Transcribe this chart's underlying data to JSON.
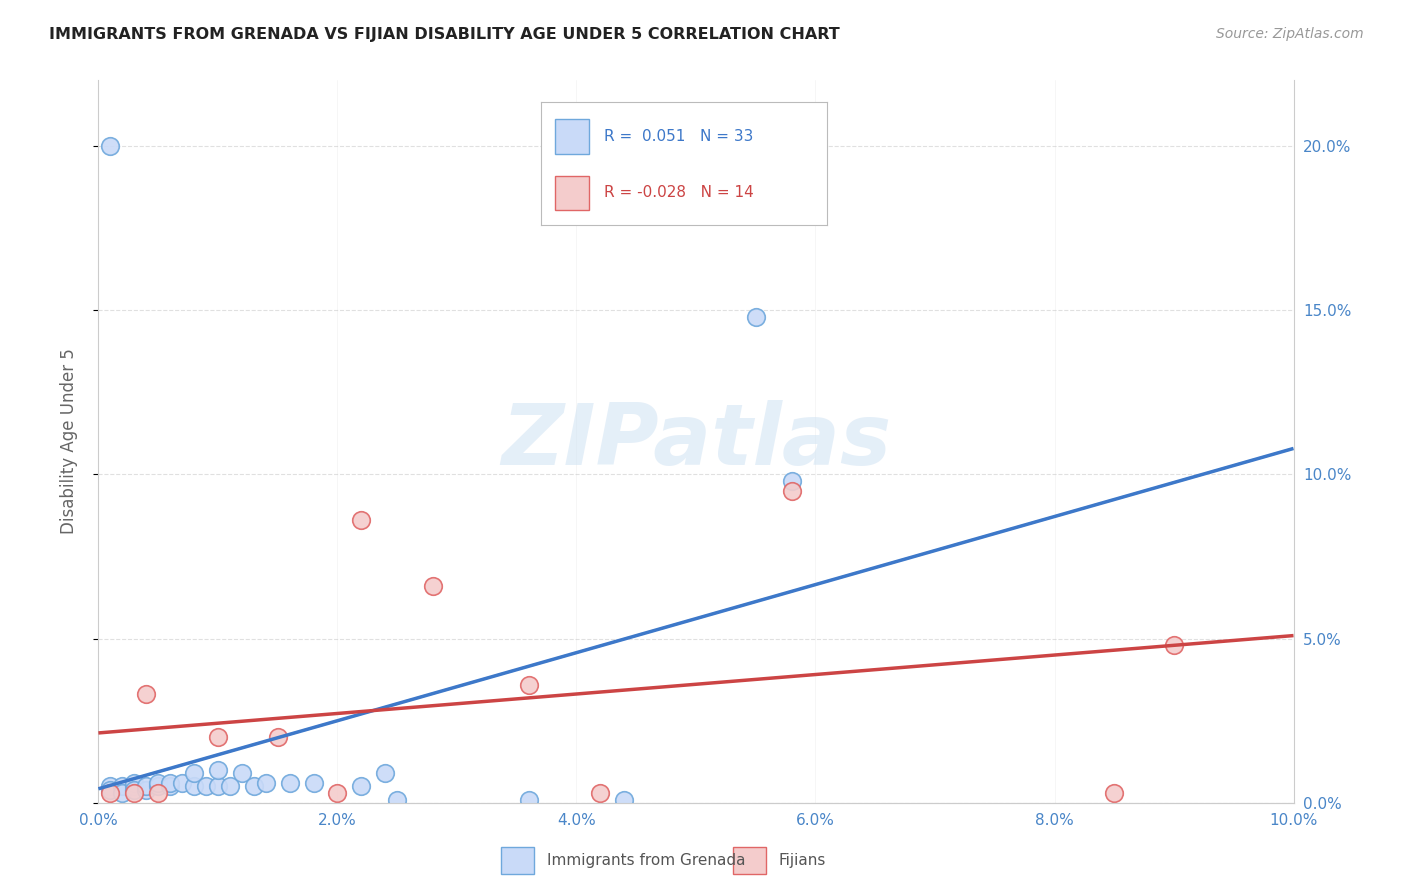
{
  "title": "IMMIGRANTS FROM GRENADA VS FIJIAN DISABILITY AGE UNDER 5 CORRELATION CHART",
  "source": "Source: ZipAtlas.com",
  "ylabel": "Disability Age Under 5",
  "xlim": [
    0.0,
    0.1
  ],
  "ylim": [
    0.0,
    0.22
  ],
  "xticks": [
    0.0,
    0.02,
    0.04,
    0.06,
    0.08,
    0.1
  ],
  "xtick_labels": [
    "0.0%",
    "2.0%",
    "4.0%",
    "6.0%",
    "8.0%",
    "10.0%"
  ],
  "yticks": [
    0.0,
    0.05,
    0.1,
    0.15,
    0.2
  ],
  "ytick_labels_right": [
    "0.0%",
    "5.0%",
    "10.0%",
    "15.0%",
    "20.0%"
  ],
  "grenada_R": "0.051",
  "grenada_N": "33",
  "fijian_R": "-0.028",
  "fijian_N": "14",
  "grenada_fill_color": "#c9daf8",
  "grenada_edge_color": "#6fa8dc",
  "fijian_fill_color": "#f4cccc",
  "fijian_edge_color": "#e06666",
  "grenada_line_color": "#3d78c9",
  "fijian_line_color": "#cc4444",
  "dash_line_color": "#9fc5e8",
  "background_color": "#ffffff",
  "grid_color": "#cccccc",
  "title_color": "#222222",
  "axis_label_color": "#666666",
  "tick_color": "#4a86c8",
  "watermark": "ZIPatlas",
  "legend_label_grenada": "Immigrants from Grenada",
  "legend_label_fijian": "Fijians",
  "grenada_x": [
    0.001,
    0.002,
    0.003,
    0.003,
    0.004,
    0.004,
    0.005,
    0.005,
    0.006,
    0.006,
    0.007,
    0.008,
    0.008,
    0.009,
    0.01,
    0.01,
    0.011,
    0.012,
    0.013,
    0.014,
    0.016,
    0.018,
    0.022,
    0.024,
    0.025,
    0.036,
    0.044,
    0.055,
    0.058,
    0.01,
    0.001,
    0.002,
    0.003
  ],
  "grenada_y": [
    0.005,
    0.005,
    0.005,
    0.006,
    0.004,
    0.005,
    0.005,
    0.006,
    0.005,
    0.006,
    0.006,
    0.005,
    0.009,
    0.005,
    0.005,
    0.01,
    0.005,
    0.009,
    0.005,
    0.006,
    0.006,
    0.006,
    0.005,
    0.009,
    0.001,
    0.001,
    0.001,
    0.148,
    0.098,
    0.006,
    0.004,
    0.003,
    0.004
  ],
  "fijian_x": [
    0.001,
    0.003,
    0.005,
    0.01,
    0.015,
    0.02,
    0.022,
    0.028,
    0.036,
    0.042,
    0.058,
    0.085,
    0.09,
    0.004
  ],
  "fijian_y": [
    0.003,
    0.003,
    0.003,
    0.02,
    0.02,
    0.003,
    0.086,
    0.066,
    0.036,
    0.003,
    0.095,
    0.003,
    0.048,
    0.033
  ]
}
